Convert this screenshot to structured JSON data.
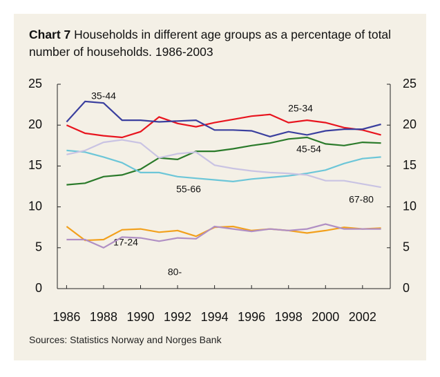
{
  "chart_data": {
    "type": "line",
    "title": "Chart 7",
    "subtitle": "Households in different age groups as a percentage of total number of households. 1986-2003",
    "source": "Sources: Statistics Norway and Norges Bank",
    "x": [
      1986,
      1987,
      1988,
      1989,
      1990,
      1991,
      1992,
      1993,
      1994,
      1995,
      1996,
      1997,
      1998,
      1999,
      2000,
      2001,
      2002,
      2003
    ],
    "xlim": [
      1985.5,
      2003.5
    ],
    "xticks": [
      1986,
      1988,
      1990,
      1992,
      1994,
      1996,
      1998,
      2000,
      2002
    ],
    "ylim": [
      0,
      25
    ],
    "yticks": [
      0,
      5,
      10,
      15,
      20,
      25
    ],
    "y2lim": [
      0,
      25
    ],
    "y2ticks": [
      0,
      5,
      10,
      15,
      20,
      25
    ],
    "series": [
      {
        "name": "25-34",
        "color": "#e8141e",
        "values": [
          20,
          19.0,
          18.7,
          18.5,
          19.2,
          21.0,
          20.2,
          19.8,
          20.3,
          20.7,
          21.1,
          21.3,
          20.3,
          20.6,
          20.3,
          19.7,
          19.4,
          18.8
        ]
      },
      {
        "name": "35-44",
        "color": "#3a3f9e",
        "values": [
          20.4,
          22.9,
          22.7,
          20.6,
          20.6,
          20.4,
          20.5,
          20.6,
          19.4,
          19.4,
          19.3,
          18.6,
          19.2,
          18.8,
          19.3,
          19.5,
          19.5,
          20.1
        ]
      },
      {
        "name": "45-54",
        "color": "#2a7a2a",
        "values": [
          12.7,
          12.9,
          13.7,
          13.9,
          14.6,
          16.0,
          15.8,
          16.8,
          16.8,
          17.1,
          17.5,
          17.8,
          18.3,
          18.5,
          17.7,
          17.5,
          17.9,
          17.8
        ]
      },
      {
        "name": "55-66",
        "color": "#6cc6d8",
        "values": [
          16.9,
          16.7,
          16.1,
          15.4,
          14.2,
          14.2,
          13.7,
          13.5,
          13.3,
          13.1,
          13.4,
          13.6,
          13.8,
          14.1,
          14.5,
          15.3,
          15.9,
          16.1
        ]
      },
      {
        "name": "67-80",
        "color": "#c9c3e3",
        "values": [
          16.4,
          16.9,
          17.9,
          18.2,
          17.8,
          16.0,
          16.5,
          16.7,
          15.1,
          14.7,
          14.4,
          14.2,
          14.1,
          13.9,
          13.2,
          13.2,
          12.8,
          12.4
        ]
      },
      {
        "name": "17-24",
        "color": "#f2a01c",
        "values": [
          7.6,
          5.9,
          6.0,
          7.2,
          7.3,
          6.9,
          7.1,
          6.4,
          7.5,
          7.6,
          7.1,
          7.3,
          7.1,
          6.8,
          7.1,
          7.5,
          7.3,
          7.4
        ]
      },
      {
        "name": "80-",
        "color": "#b08fc4",
        "values": [
          6.0,
          6.0,
          5.0,
          6.3,
          6.2,
          5.8,
          6.2,
          6.1,
          7.6,
          7.3,
          7.0,
          7.3,
          7.1,
          7.3,
          7.9,
          7.3,
          7.3,
          7.3
        ]
      }
    ]
  }
}
